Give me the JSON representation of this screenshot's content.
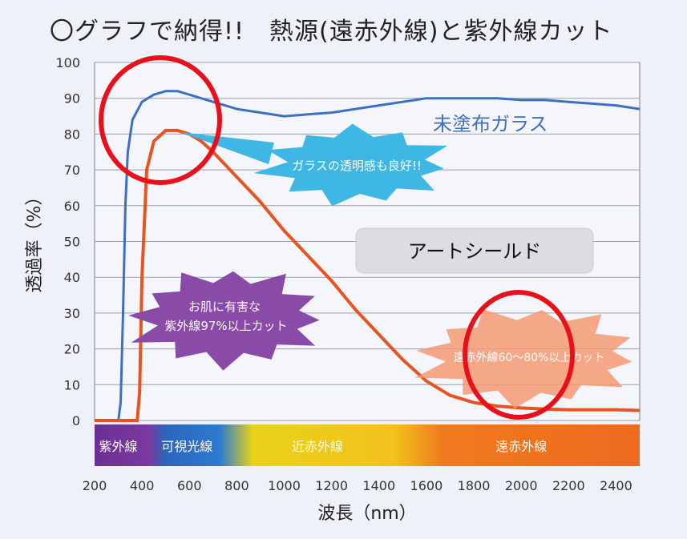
{
  "chart_data": {
    "type": "line",
    "title": "〇グラフで納得!!　熱源(遠赤外線)と紫外線カット",
    "xlabel": "波長（nm）",
    "ylabel": "透過率（%）",
    "xlim": [
      200,
      2500
    ],
    "ylim": [
      0,
      100
    ],
    "x_ticks": [
      "200",
      "400",
      "600",
      "800",
      "1000",
      "1200",
      "1400",
      "1600",
      "1800",
      "2000",
      "2200",
      "2400"
    ],
    "y_ticks": [
      "0",
      "10",
      "20",
      "30",
      "40",
      "50",
      "60",
      "70",
      "80",
      "90",
      "100"
    ],
    "grid": true,
    "series": [
      {
        "name": "未塗布ガラス",
        "color": "#3f6fc4",
        "x": [
          200,
          300,
          310,
          320,
          330,
          340,
          360,
          400,
          450,
          500,
          550,
          600,
          650,
          700,
          750,
          800,
          900,
          1000,
          1100,
          1200,
          1300,
          1400,
          1500,
          1600,
          1700,
          1800,
          1900,
          2000,
          2100,
          2200,
          2300,
          2400,
          2500
        ],
        "y": [
          0,
          0,
          5,
          30,
          60,
          75,
          84,
          89,
          91,
          92,
          92,
          91,
          90,
          89,
          88,
          87,
          86,
          85,
          85.5,
          86,
          87,
          88,
          89,
          90,
          90,
          90,
          90,
          89.5,
          89.5,
          89,
          88.5,
          88,
          87
        ]
      },
      {
        "name": "アートシールド",
        "color": "#e8531f",
        "x": [
          200,
          380,
          390,
          400,
          420,
          450,
          500,
          550,
          600,
          650,
          700,
          800,
          900,
          1000,
          1100,
          1200,
          1300,
          1400,
          1500,
          1600,
          1700,
          1800,
          1900,
          2000,
          2100,
          2200,
          2300,
          2400,
          2500
        ],
        "y": [
          0,
          0,
          8,
          40,
          70,
          78,
          81,
          81,
          80,
          78,
          75,
          68,
          61,
          53,
          46,
          39,
          31,
          24,
          17,
          11,
          7,
          5,
          4,
          3.5,
          3.2,
          3,
          3,
          3,
          2.8
        ]
      }
    ],
    "series_labels": {
      "uncoated": "未塗布ガラス",
      "shield": "アートシールド"
    },
    "callouts": {
      "clarity": "ガラスの透明感も良好!!",
      "uv_line1": "お肌に有害な",
      "uv_line2": "紫外線97%以上カット",
      "ir": "遠赤外線60～80%以上カット"
    },
    "bands": [
      {
        "label": "紫外線",
        "from": 200,
        "to": 400,
        "color": "#7a3a9e"
      },
      {
        "label": "可視光線",
        "from": 400,
        "to": 780,
        "color": "#2d6fc0"
      },
      {
        "label": "近赤外線",
        "from": 780,
        "to": 1500,
        "color": "#f2cc1a"
      },
      {
        "label": "遠赤外線",
        "from": 1500,
        "to": 2500,
        "color": "#ef6a1e"
      }
    ]
  }
}
